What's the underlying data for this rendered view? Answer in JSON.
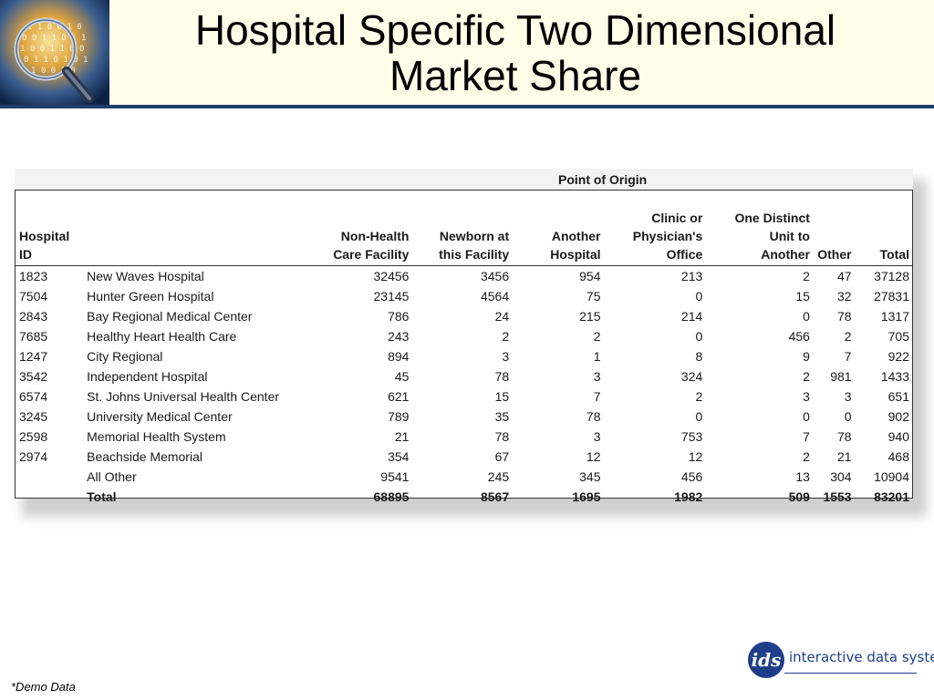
{
  "slide": {
    "title_line1": "Hospital Specific Two Dimensional",
    "title_line2": "Market Share",
    "logo_icon": "binary-magnifier-icon"
  },
  "table": {
    "group_header": "Point of Origin",
    "columns": [
      {
        "line1": "",
        "line2": "",
        "line3": "Hospital ID"
      },
      {
        "line1": "",
        "line2": "",
        "line3": ""
      },
      {
        "line1": "",
        "line2": "Non-Health",
        "line3": "Care Facility"
      },
      {
        "line1": "",
        "line2": "Newborn at",
        "line3": "this Facility"
      },
      {
        "line1": "",
        "line2": "Another",
        "line3": "Hospital"
      },
      {
        "line1": "Clinic or",
        "line2": "Physician's",
        "line3": "Office"
      },
      {
        "line1": "One Distinct",
        "line2": "Unit to",
        "line3": "Another"
      },
      {
        "line1": "",
        "line2": "",
        "line3": "Other"
      },
      {
        "line1": "",
        "line2": "",
        "line3": "Total"
      }
    ],
    "rows": [
      [
        "1823",
        "New Waves Hospital",
        "32456",
        "3456",
        "954",
        "213",
        "2",
        "47",
        "37128"
      ],
      [
        "7504",
        "Hunter Green Hospital",
        "23145",
        "4564",
        "75",
        "0",
        "15",
        "32",
        "27831"
      ],
      [
        "2843",
        "Bay Regional Medical Center",
        "786",
        "24",
        "215",
        "214",
        "0",
        "78",
        "1317"
      ],
      [
        "7685",
        "Healthy Heart Health Care",
        "243",
        "2",
        "2",
        "0",
        "456",
        "2",
        "705"
      ],
      [
        "1247",
        "City Regional",
        "894",
        "3",
        "1",
        "8",
        "9",
        "7",
        "922"
      ],
      [
        "3542",
        "Independent Hospital",
        "45",
        "78",
        "3",
        "324",
        "2",
        "981",
        "1433"
      ],
      [
        "6574",
        "St. Johns Universal Health Center",
        "621",
        "15",
        "7",
        "2",
        "3",
        "3",
        "651"
      ],
      [
        "3245",
        "University Medical Center",
        "789",
        "35",
        "78",
        "0",
        "0",
        "0",
        "902"
      ],
      [
        "2598",
        "Memorial Health System",
        "21",
        "78",
        "3",
        "753",
        "7",
        "78",
        "940"
      ],
      [
        "2974",
        "Beachside Memorial",
        "354",
        "67",
        "12",
        "12",
        "2",
        "21",
        "468"
      ],
      [
        "",
        "All Other",
        "9541",
        "245",
        "345",
        "456",
        "13",
        "304",
        "10904"
      ]
    ],
    "total_row": [
      "",
      "Total",
      "68895",
      "8567",
      "1695",
      "1982",
      "509",
      "1553",
      "83201"
    ]
  },
  "footer": {
    "note": "*Demo Data",
    "brand_mark": "ids",
    "brand_name": "interactive data system"
  },
  "colors": {
    "header_band": "#fefee8",
    "header_rule": "#1f3e6e",
    "brand_blue": "#1f3e8a"
  }
}
